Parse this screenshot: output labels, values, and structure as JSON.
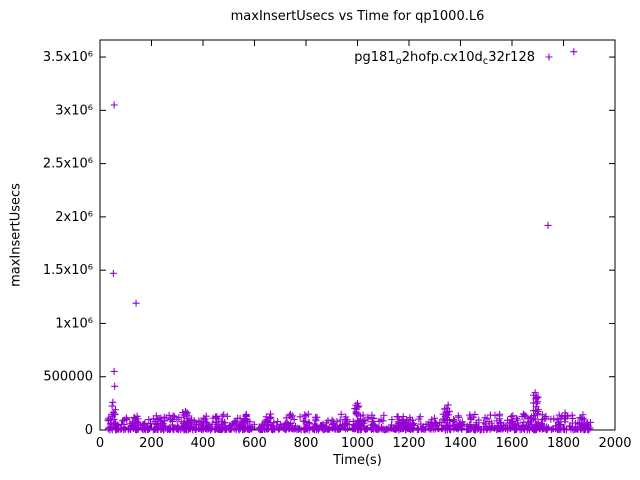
{
  "figure": {
    "title": "maxInsertUsecs vs Time for qp1000.L6",
    "xlabel": "Time(s)",
    "ylabel": "maxInsertUsecs",
    "legend": {
      "plain": "pg181_o2hofp.cx10d_c32r128",
      "segments": [
        {
          "text": "pg181"
        },
        {
          "text": "o",
          "sub": true
        },
        {
          "text": "2hofp.cx10d"
        },
        {
          "text": "c",
          "sub": true
        },
        {
          "text": "32r128"
        }
      ]
    }
  },
  "chart_data": {
    "type": "scatter",
    "title": "maxInsertUsecs vs Time for qp1000.L6",
    "xlabel": "Time(s)",
    "ylabel": "maxInsertUsecs",
    "series_name": "pg181_o2hofp.cx10d_c32r128",
    "marker": "plus",
    "color": "#9400d3",
    "axis_color": "#000000",
    "grid": false,
    "legend_position": "top-right-inside",
    "xlim": [
      0,
      2000
    ],
    "ylim": [
      0,
      3660000
    ],
    "x_ticks": [
      {
        "value": 0,
        "label": "0"
      },
      {
        "value": 200,
        "label": "200"
      },
      {
        "value": 400,
        "label": "400"
      },
      {
        "value": 600,
        "label": "600"
      },
      {
        "value": 800,
        "label": "800"
      },
      {
        "value": 1000,
        "label": "1000"
      },
      {
        "value": 1200,
        "label": "1200"
      },
      {
        "value": 1400,
        "label": "1400"
      },
      {
        "value": 1600,
        "label": "1600"
      },
      {
        "value": 1800,
        "label": "1800"
      },
      {
        "value": 2000,
        "label": "2000"
      }
    ],
    "y_ticks": [
      {
        "value": 0,
        "label": "0"
      },
      {
        "value": 500000,
        "label": "500000"
      },
      {
        "value": 1000000,
        "label": "1x10⁶"
      },
      {
        "value": 1500000,
        "label": "1.5x10⁶"
      },
      {
        "value": 2000000,
        "label": "2x10⁶"
      },
      {
        "value": 2500000,
        "label": "2.5x10⁶"
      },
      {
        "value": 3000000,
        "label": "3x10⁶"
      },
      {
        "value": 3500000,
        "label": "3.5x10⁶"
      }
    ],
    "outliers": [
      [
        55,
        3050000
      ],
      [
        52,
        1470000
      ],
      [
        140,
        1190000
      ],
      [
        55,
        550000
      ],
      [
        57,
        410000
      ],
      [
        50,
        260000
      ],
      [
        47,
        225000
      ],
      [
        60,
        190000
      ],
      [
        1740,
        1920000
      ],
      [
        1840,
        3550000
      ],
      [
        1690,
        350000
      ],
      [
        1696,
        300000
      ],
      [
        1700,
        265000
      ],
      [
        1000,
        250000
      ],
      [
        1005,
        225000
      ],
      [
        996,
        195000
      ],
      [
        1352,
        235000
      ],
      [
        1347,
        205000
      ],
      [
        332,
        175000
      ],
      [
        336,
        150000
      ],
      [
        1806,
        160000
      ],
      [
        1876,
        110000
      ],
      [
        662,
        150000
      ],
      [
        800,
        132000
      ]
    ],
    "baseline": {
      "seed": 42,
      "count": 900,
      "x_min": 28,
      "x_max": 1905,
      "y_pow": 3,
      "y_spread": 140000,
      "y_noise": 12000
    },
    "clusters": [
      {
        "x": 55,
        "hw": 10,
        "count": 14,
        "y_max": 180000
      },
      {
        "x": 140,
        "hw": 8,
        "count": 8,
        "y_max": 120000
      },
      {
        "x": 240,
        "hw": 10,
        "count": 8,
        "y_max": 100000
      },
      {
        "x": 330,
        "hw": 12,
        "count": 20,
        "y_max": 180000
      },
      {
        "x": 460,
        "hw": 15,
        "count": 10,
        "y_max": 120000
      },
      {
        "x": 560,
        "hw": 10,
        "count": 8,
        "y_max": 110000
      },
      {
        "x": 660,
        "hw": 15,
        "count": 12,
        "y_max": 140000
      },
      {
        "x": 800,
        "hw": 15,
        "count": 10,
        "y_max": 130000
      },
      {
        "x": 1000,
        "hw": 12,
        "count": 25,
        "y_max": 250000
      },
      {
        "x": 1200,
        "hw": 15,
        "count": 8,
        "y_max": 110000
      },
      {
        "x": 1350,
        "hw": 12,
        "count": 25,
        "y_max": 235000
      },
      {
        "x": 1450,
        "hw": 10,
        "count": 8,
        "y_max": 120000
      },
      {
        "x": 1550,
        "hw": 10,
        "count": 8,
        "y_max": 110000
      },
      {
        "x": 1610,
        "hw": 8,
        "count": 8,
        "y_max": 130000
      },
      {
        "x": 1693,
        "hw": 10,
        "count": 25,
        "y_max": 350000
      },
      {
        "x": 1805,
        "hw": 8,
        "count": 6,
        "y_max": 160000
      },
      {
        "x": 1875,
        "hw": 8,
        "count": 6,
        "y_max": 110000
      }
    ]
  }
}
